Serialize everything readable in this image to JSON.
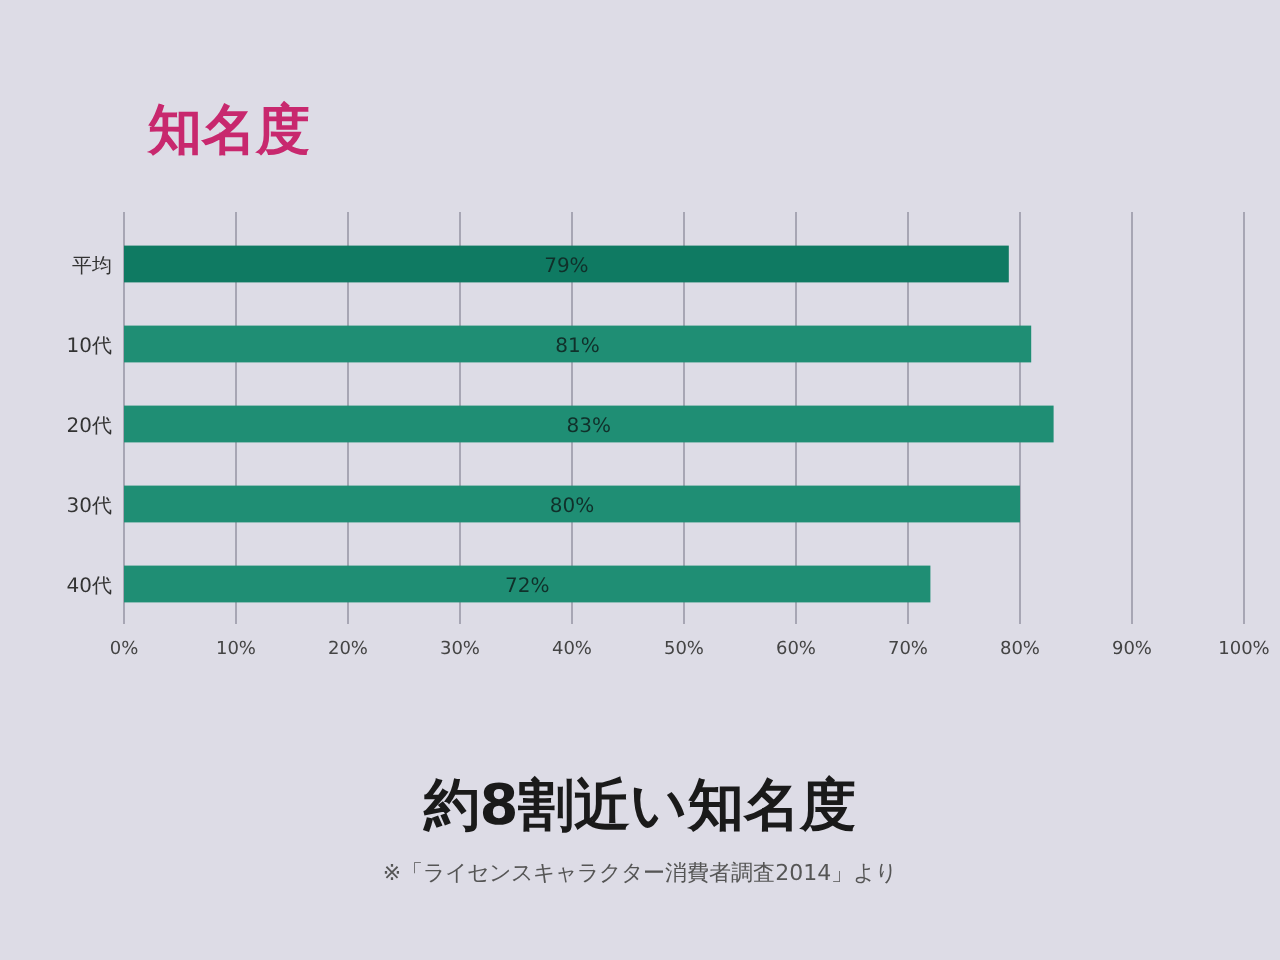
{
  "chart_data": {
    "type": "bar",
    "orientation": "horizontal",
    "title": "知名度",
    "categories": [
      "平均",
      "10代",
      "20代",
      "30代",
      "40代"
    ],
    "values": [
      79,
      81,
      83,
      80,
      72
    ],
    "colors": [
      "#0f7a62",
      "#1f8e74",
      "#1f8e74",
      "#1f8e74",
      "#1f8e74"
    ],
    "value_labels": [
      "79%",
      "81%",
      "83%",
      "80%",
      "72%"
    ],
    "xlim": [
      0,
      100
    ],
    "xticks": [
      {
        "value": 0,
        "label": "0%"
      },
      {
        "value": 10,
        "label": "10%"
      },
      {
        "value": 20,
        "label": "20%"
      },
      {
        "value": 30,
        "label": "30%"
      },
      {
        "value": 40,
        "label": "40%"
      },
      {
        "value": 50,
        "label": "50%"
      },
      {
        "value": 60,
        "label": "60%"
      },
      {
        "value": 70,
        "label": "70%"
      },
      {
        "value": 80,
        "label": "80%"
      },
      {
        "value": 90,
        "label": "90%"
      },
      {
        "value": 100,
        "label": "100%"
      }
    ],
    "grid": "x",
    "annotations": [
      "約8割近い知名度",
      "※「ライセンスキャラクター消費者調査2014」より"
    ]
  }
}
